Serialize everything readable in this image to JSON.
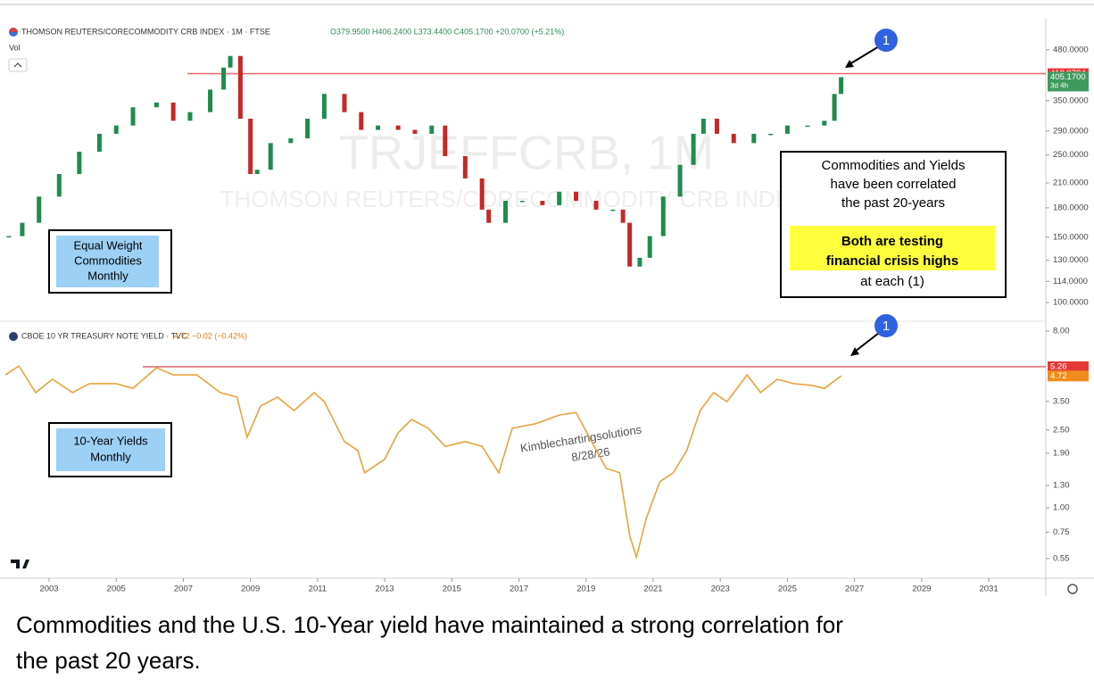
{
  "chart_data": [
    {
      "type": "candlestick",
      "title": "THOMSON REUTERS/CORECOMMODITY CRB INDEX · 1M · FTSE",
      "subtitle": "O379.9500 H406.2400 L373.4400 C405.1700 +20.0700 (+5.21%)",
      "volume_label": "Vol",
      "watermark": "TRJEFFCRB, 1M",
      "watermark_subtitle": "THOMSON REUTERS/CORECOMMODITY CRB INDEX",
      "label": [
        "Equal Weight",
        "Commodities",
        "Monthly"
      ],
      "log_scale": true,
      "x": [
        2001.8,
        2002.2,
        2002.7,
        2003.3,
        2003.9,
        2004.5,
        2005.0,
        2005.5,
        2006.2,
        2006.7,
        2007.2,
        2007.8,
        2008.2,
        2008.4,
        2008.7,
        2009.0,
        2009.2,
        2009.6,
        2010.2,
        2010.7,
        2011.2,
        2011.8,
        2012.3,
        2012.8,
        2013.4,
        2013.9,
        2014.4,
        2014.8,
        2015.4,
        2015.9,
        2016.1,
        2016.6,
        2017.1,
        2017.7,
        2018.2,
        2018.7,
        2019.3,
        2019.8,
        2020.1,
        2020.3,
        2020.6,
        2020.9,
        2021.3,
        2021.8,
        2022.2,
        2022.5,
        2022.9,
        2023.4,
        2024.0,
        2024.5,
        2025.0,
        2025.6,
        2026.1,
        2026.4,
        2026.6
      ],
      "values": [
        151,
        164,
        193,
        222,
        255,
        285,
        300,
        336,
        346,
        309,
        326,
        375,
        430,
        462,
        313,
        222,
        228,
        269,
        277,
        313,
        365,
        326,
        292,
        300,
        292,
        285,
        300,
        248,
        216,
        178,
        164,
        188,
        188,
        183,
        199,
        188,
        178,
        178,
        164,
        125,
        132,
        151,
        193,
        235,
        285,
        313,
        285,
        269,
        285,
        285,
        300,
        300,
        309,
        365,
        405.17
      ],
      "up_color": "#1e8c4e",
      "down_color": "#c62828",
      "xlim": [
        2001.67,
        2032.7
      ],
      "ylim": [
        90,
        560
      ],
      "yticks": [
        {
          "value": 100,
          "label": "100.0000"
        },
        {
          "value": 114,
          "label": "114.0000"
        },
        {
          "value": 130,
          "label": "130.0000"
        },
        {
          "value": 150,
          "label": "150.0000"
        },
        {
          "value": 180,
          "label": "180.0000"
        },
        {
          "value": 210,
          "label": "210.0000"
        },
        {
          "value": 250,
          "label": "250.0000"
        },
        {
          "value": 290,
          "label": "290.0000"
        },
        {
          "value": 350,
          "label": "350.0000"
        },
        {
          "value": 480,
          "label": "480.0000"
        }
      ],
      "resistance": {
        "value": 413.9784,
        "color": "#e8666b"
      },
      "last": {
        "value": 405.17,
        "label": "405.1700",
        "time_left": "3d 4h",
        "color": "#3f9a5e"
      },
      "marker": "1"
    },
    {
      "type": "line",
      "title": "CBOE 10 YR TREASURY NOTE YIELD · TVC",
      "subtitle": "4.72 −0.02 (−0.42%)",
      "label": [
        "10-Year Yields",
        "Monthly"
      ],
      "log_scale": true,
      "x": [
        2001.7,
        2002.1,
        2002.6,
        2003.1,
        2003.7,
        2004.2,
        2005.0,
        2005.5,
        2006.2,
        2006.7,
        2007.4,
        2008.1,
        2008.6,
        2008.9,
        2009.3,
        2009.8,
        2010.3,
        2010.9,
        2011.2,
        2011.8,
        2012.2,
        2012.4,
        2013.0,
        2013.4,
        2013.8,
        2014.3,
        2014.8,
        2015.4,
        2015.9,
        2016.4,
        2016.8,
        2017.5,
        2018.2,
        2018.7,
        2019.1,
        2019.6,
        2020.0,
        2020.3,
        2020.5,
        2020.8,
        2021.2,
        2021.6,
        2022.0,
        2022.4,
        2022.8,
        2023.2,
        2023.8,
        2024.2,
        2024.7,
        2025.2,
        2025.7,
        2026.1,
        2026.6
      ],
      "values": [
        4.78,
        5.31,
        3.88,
        4.54,
        3.88,
        4.31,
        4.31,
        4.08,
        5.2,
        4.78,
        4.78,
        3.88,
        3.68,
        2.29,
        3.31,
        3.68,
        3.14,
        3.88,
        3.49,
        2.18,
        1.96,
        1.51,
        1.77,
        2.42,
        2.83,
        2.55,
        2.06,
        2.18,
        2.06,
        1.51,
        2.55,
        2.69,
        2.98,
        3.07,
        2.29,
        1.59,
        1.51,
        0.72,
        0.56,
        0.89,
        1.36,
        1.51,
        1.96,
        3.14,
        3.88,
        3.49,
        4.78,
        3.88,
        4.54,
        4.31,
        4.23,
        4.08,
        4.72
      ],
      "color": "#e8a33d",
      "xlim": [
        2001.67,
        2032.7
      ],
      "xticks": [
        2003,
        2005,
        2007,
        2009,
        2011,
        2013,
        2015,
        2017,
        2019,
        2021,
        2023,
        2025,
        2027,
        2029,
        2031
      ],
      "ylim": [
        0.45,
        8.8
      ],
      "yticks": [
        {
          "value": 0.55,
          "label": "0.55"
        },
        {
          "value": 0.75,
          "label": "0.75"
        },
        {
          "value": 1,
          "label": "1.00"
        },
        {
          "value": 1.3,
          "label": "1.30"
        },
        {
          "value": 1.9,
          "label": "1.90"
        },
        {
          "value": 2.5,
          "label": "2.50"
        },
        {
          "value": 3.5,
          "label": "3.50"
        },
        {
          "value": 8,
          "label": "8.00"
        }
      ],
      "resistance": {
        "value": 5.26,
        "color": "#e8666b"
      },
      "last": {
        "value": 4.72,
        "color": "#f08c1e"
      },
      "marker": "1",
      "watermark": [
        "Kimblechartingsolutions",
        "8/28/26"
      ]
    }
  ],
  "annotation": {
    "lines": [
      "Commodities and Yields",
      "have been correlated",
      "the past 20-years"
    ],
    "highlight": [
      "Both are testing",
      "financial crisis highs"
    ],
    "footnote": "at each (1)"
  },
  "caption": [
    "Commodities and the U.S. 10-Year yield have maintained a strong correlation for",
    "the past 20 years."
  ]
}
